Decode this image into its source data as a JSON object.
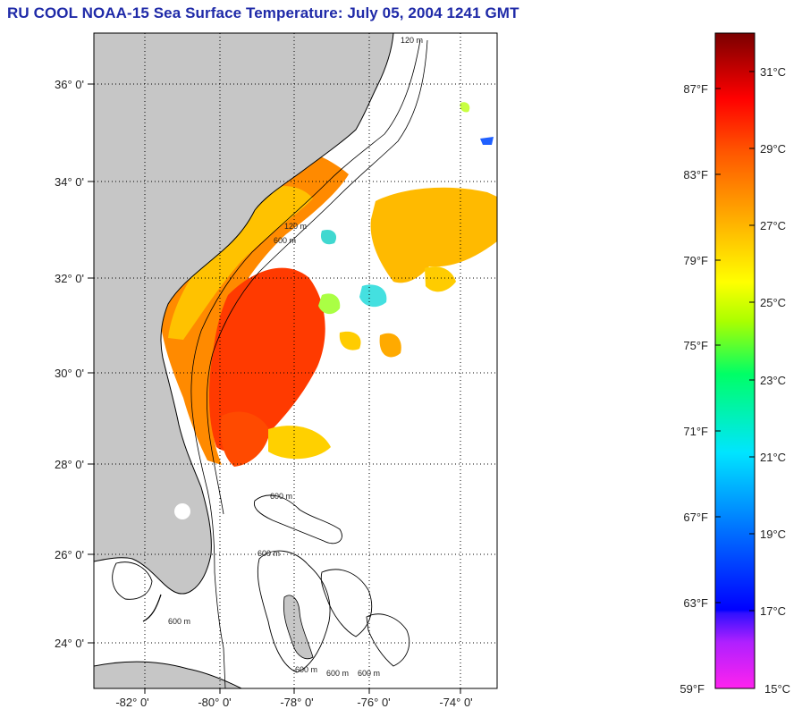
{
  "title": "RU COOL  NOAA-15  Sea Surface Temperature:  July 05, 2004 1241 GMT",
  "map": {
    "lat_labels": [
      "36° 0'",
      "34° 0'",
      "32° 0'",
      "30° 0'",
      "28° 0'",
      "26° 0'",
      "24° 0'"
    ],
    "lon_labels": [
      "-82° 0'",
      "-80° 0'",
      "-78° 0'",
      "-76° 0'",
      "-74° 0'"
    ],
    "contour_labels": [
      "120 m",
      "120 m",
      "600 m",
      "600 m",
      "600 m",
      "600 m",
      "600 m",
      "600 m",
      "600 m"
    ],
    "colors": {
      "land": "#c6c6c6",
      "ocean": "#ffffff",
      "coast": "#000000"
    }
  },
  "colorbar": {
    "fahrenheit_labels": [
      "87°F",
      "83°F",
      "79°F",
      "75°F",
      "71°F",
      "67°F",
      "63°F",
      "59°F"
    ],
    "celsius_labels": [
      "31°C",
      "29°C",
      "27°C",
      "25°C",
      "23°C",
      "21°C",
      "19°C",
      "17°C",
      "15°C"
    ],
    "colors": [
      "#ff22ee",
      "#8a2be2",
      "#0000ff",
      "#0080ff",
      "#00e5ff",
      "#00ff66",
      "#ccff00",
      "#ffff00",
      "#ff9900",
      "#ff3300",
      "#ff0000",
      "#7a0000"
    ]
  }
}
